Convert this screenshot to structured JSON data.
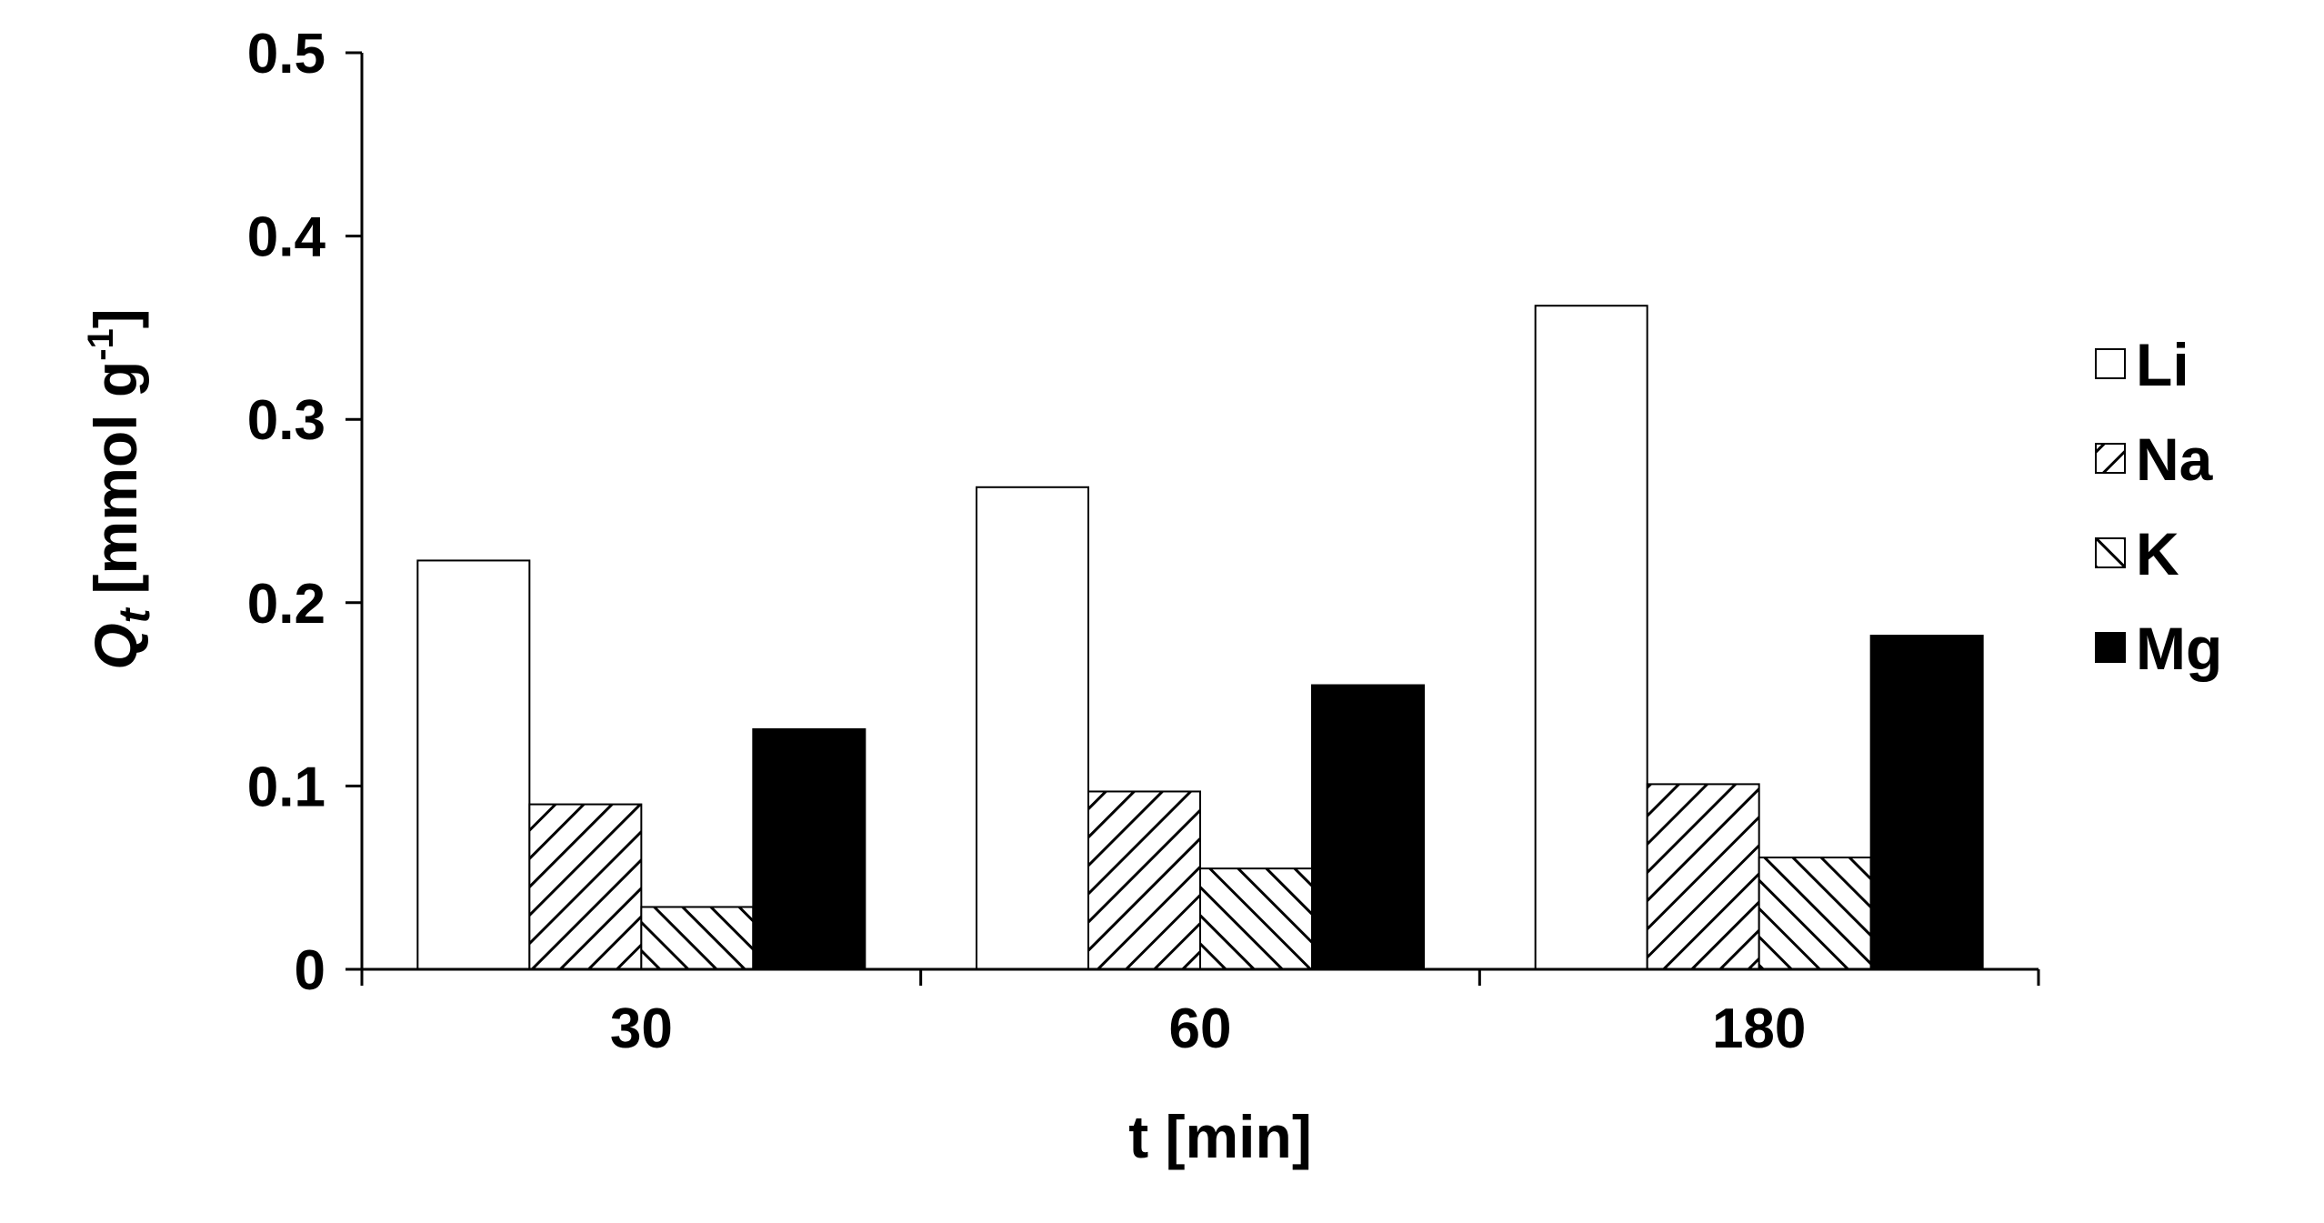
{
  "chart_data": {
    "type": "bar",
    "xlabel": "t [min]",
    "ylabel": {
      "symbol": "Q",
      "subscript": "t",
      "unit_main": "[mmol g",
      "unit_sup": "-1",
      "unit_close": "]"
    },
    "categories": [
      "30",
      "60",
      "180"
    ],
    "ylim": [
      0,
      0.5
    ],
    "yticks": [
      0,
      0.1,
      0.2,
      0.3,
      0.4,
      0.5
    ],
    "ytick_labels": [
      "0",
      "0.1",
      "0.2",
      "0.3",
      "0.4",
      "0.5"
    ],
    "legend_position": "right",
    "grid": false,
    "series": [
      {
        "name": "Li",
        "values": [
          0.223,
          0.263,
          0.362
        ],
        "fill": "white"
      },
      {
        "name": "Na",
        "values": [
          0.09,
          0.097,
          0.101
        ],
        "fill": "hatch-down"
      },
      {
        "name": "K",
        "values": [
          0.034,
          0.055,
          0.061
        ],
        "fill": "hatch-up"
      },
      {
        "name": "Mg",
        "values": [
          0.131,
          0.155,
          0.182
        ],
        "fill": "black"
      }
    ],
    "colors": {
      "bar_stroke": "#000000",
      "solid": "#000000",
      "background": "#ffffff"
    }
  }
}
